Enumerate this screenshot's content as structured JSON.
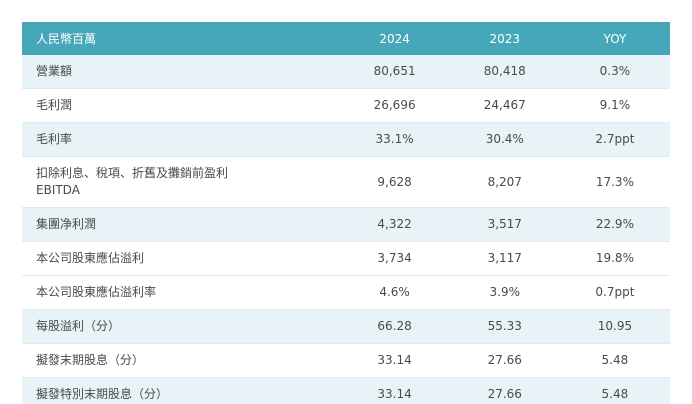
{
  "table": {
    "header": {
      "col_label": "人民幣百萬",
      "col_2024": "2024",
      "col_2023": "2023",
      "col_yoy": "YOY"
    },
    "colors": {
      "header_bg": "#47a7ba",
      "header_text": "#ffffff",
      "stripe_bg": "#e7f3f7",
      "row_bg": "#ffffff",
      "text": "#4a4a4a",
      "hairline": "#dcebf0"
    },
    "rows": [
      {
        "label_lines": [
          "營業額"
        ],
        "v2024": "80,651",
        "v2023": "80,418",
        "yoy": "0.3%",
        "shaded": true
      },
      {
        "label_lines": [
          "毛利潤"
        ],
        "v2024": "26,696",
        "v2023": "24,467",
        "yoy": "9.1%",
        "shaded": false
      },
      {
        "label_lines": [
          "毛利率"
        ],
        "v2024": "33.1%",
        "v2023": "30.4%",
        "yoy": "2.7ppt",
        "shaded": true
      },
      {
        "label_lines": [
          "扣除利息、稅項、折舊及攤銷前盈利",
          "EBITDA"
        ],
        "v2024": "9,628",
        "v2023": "8,207",
        "yoy": "17.3%",
        "shaded": false
      },
      {
        "label_lines": [
          "集團净利潤"
        ],
        "v2024": "4,322",
        "v2023": "3,517",
        "yoy": "22.9%",
        "shaded": true
      },
      {
        "label_lines": [
          "本公司股東應佔溢利"
        ],
        "v2024": "3,734",
        "v2023": "3,117",
        "yoy": "19.8%",
        "shaded": false
      },
      {
        "label_lines": [
          "本公司股東應佔溢利率"
        ],
        "v2024": "4.6%",
        "v2023": "3.9%",
        "yoy": "0.7ppt",
        "shaded": false
      },
      {
        "label_lines": [
          "每股溢利（分）"
        ],
        "v2024": "66.28",
        "v2023": "55.33",
        "yoy": "10.95",
        "shaded": true
      },
      {
        "label_lines": [
          "擬發末期股息（分）"
        ],
        "v2024": "33.14",
        "v2023": "27.66",
        "yoy": "5.48",
        "shaded": false
      },
      {
        "label_lines": [
          "擬發特別末期股息（分）"
        ],
        "v2024": "33.14",
        "v2023": "27.66",
        "yoy": "5.48",
        "shaded": true
      }
    ]
  }
}
